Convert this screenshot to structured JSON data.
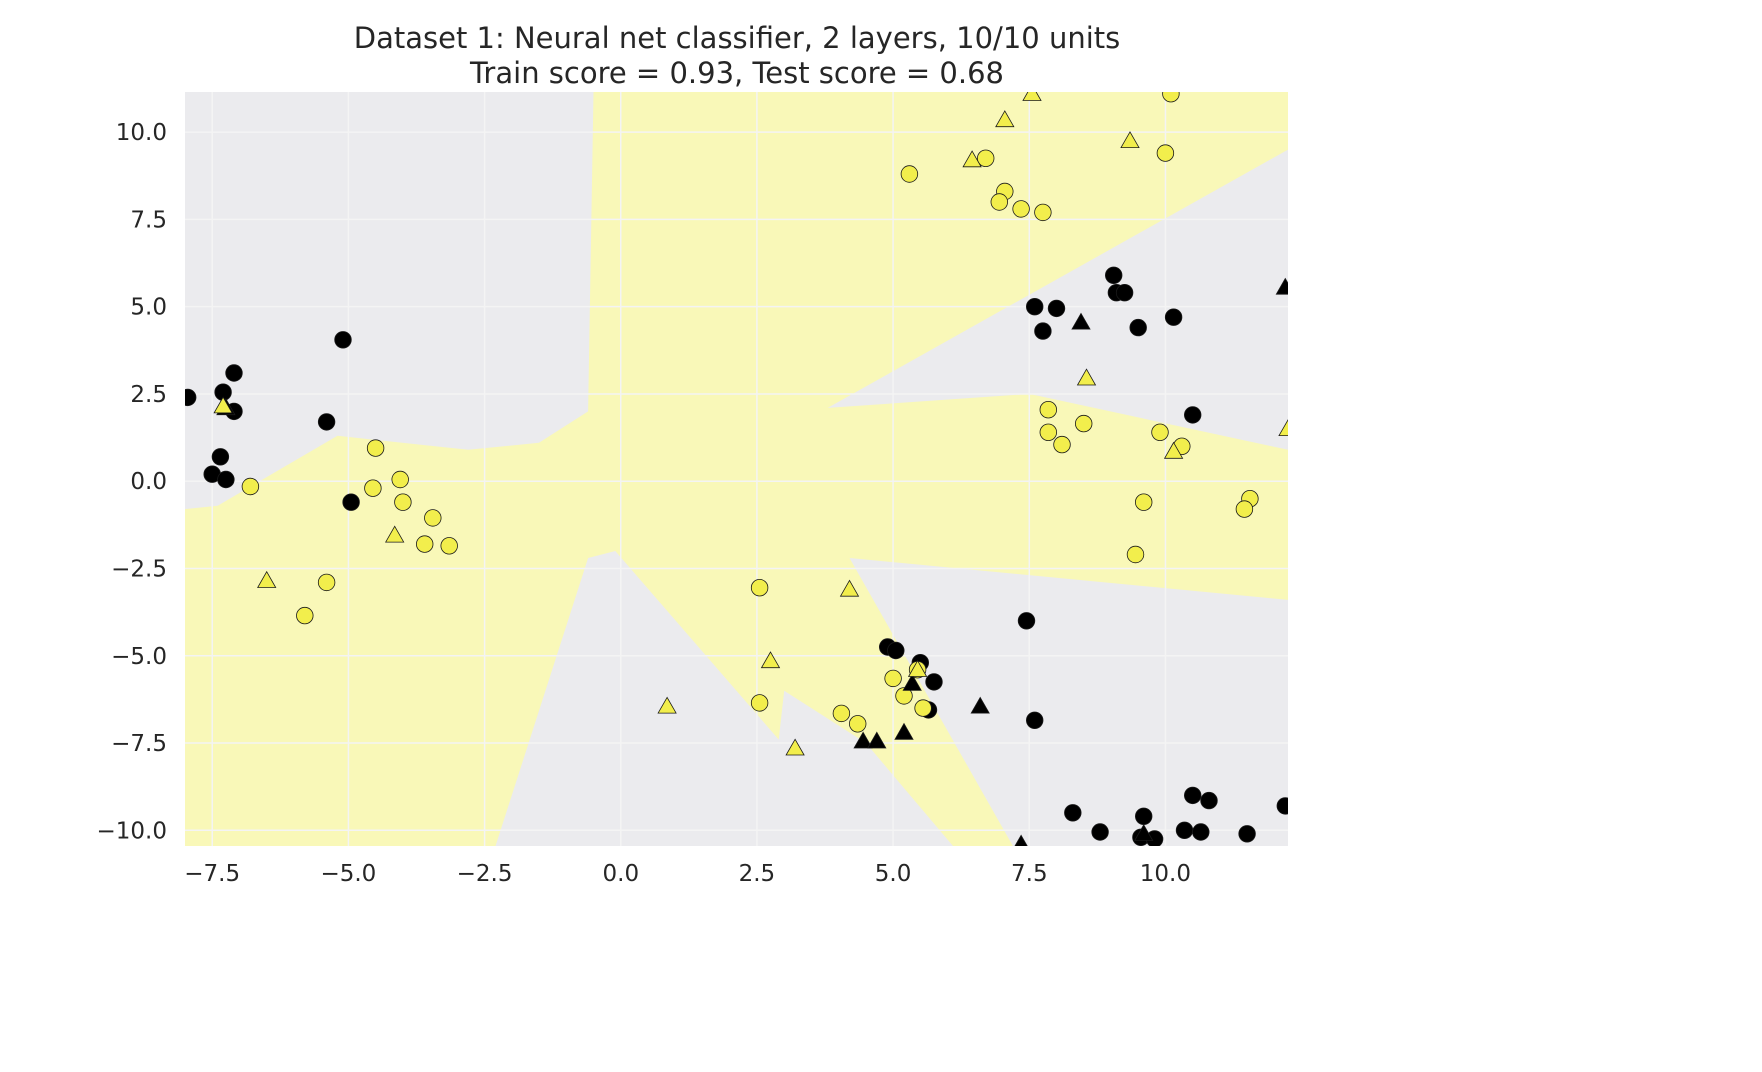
{
  "chart_data": {
    "type": "scatter",
    "title": "Dataset 1: Neural net classifier, 2 layers, 10/10 units",
    "subtitle": "Train score = 0.93, Test score = 0.68",
    "xlabel": "",
    "ylabel": "",
    "xlim": [
      -8.0,
      12.25
    ],
    "ylim": [
      -10.45,
      11.15
    ],
    "x_ticks": [
      -7.5,
      -5.0,
      -2.5,
      0.0,
      2.5,
      5.0,
      7.5,
      10.0
    ],
    "y_ticks": [
      10.0,
      7.5,
      5.0,
      2.5,
      0.0,
      -2.5,
      -5.0,
      -7.5,
      -10.0
    ],
    "x_tick_labels": [
      "−7.5",
      "−5.0",
      "−2.5",
      "0.0",
      "2.5",
      "5.0",
      "7.5",
      "10.0"
    ],
    "y_tick_labels": [
      "10.0",
      "7.5",
      "5.0",
      "2.5",
      "0.0",
      "−2.5",
      "−5.0",
      "−7.5",
      "−10.0"
    ],
    "grid": true,
    "colors": {
      "background_class": "#ebebee",
      "region_class": "#f9f8b8",
      "point_yellow": "#f2ee4c",
      "point_black": "#000000",
      "grid": "#f4f4f4"
    },
    "decision_regions": [
      [
        [
          -0.5,
          11.15
        ],
        [
          -0.6,
          2.0
        ],
        [
          -1.5,
          1.1
        ],
        [
          -2.8,
          0.9
        ],
        [
          -5.2,
          1.3
        ],
        [
          -7.4,
          -0.7
        ],
        [
          -8.0,
          -0.8
        ],
        [
          -8.0,
          -10.45
        ],
        [
          -2.3,
          -10.45
        ],
        [
          -0.6,
          -2.2
        ],
        [
          -0.1,
          -2.0
        ],
        [
          2.9,
          -7.4
        ],
        [
          3.0,
          -6.0
        ],
        [
          4.5,
          -7.5
        ],
        [
          6.1,
          -10.45
        ],
        [
          7.2,
          -10.45
        ],
        [
          4.2,
          -2.2
        ],
        [
          12.25,
          -3.4
        ],
        [
          12.25,
          0.9
        ],
        [
          7.5,
          2.5
        ],
        [
          3.8,
          2.1
        ],
        [
          12.25,
          9.5
        ],
        [
          12.25,
          11.15
        ]
      ],
      [
        [
          -7.0,
          -0.8
        ],
        [
          -1.0,
          -0.2
        ],
        [
          -0.3,
          -0.3
        ],
        [
          -1.5,
          -0.6
        ]
      ]
    ],
    "series": [
      {
        "name": "train",
        "marker": "circle",
        "class_yellow": [
          [
            -6.8,
            -0.15
          ],
          [
            -4.5,
            0.95
          ],
          [
            -4.55,
            -0.2
          ],
          [
            -4.05,
            0.05
          ],
          [
            -4.0,
            -0.6
          ],
          [
            -3.45,
            -1.05
          ],
          [
            -3.6,
            -1.8
          ],
          [
            -3.15,
            -1.85
          ],
          [
            -5.4,
            -2.9
          ],
          [
            -5.8,
            -3.85
          ],
          [
            5.3,
            8.8
          ],
          [
            6.7,
            9.25
          ],
          [
            7.05,
            8.3
          ],
          [
            6.95,
            8.0
          ],
          [
            7.35,
            7.8
          ],
          [
            7.75,
            7.7
          ],
          [
            7.85,
            2.05
          ],
          [
            7.85,
            1.4
          ],
          [
            8.1,
            1.05
          ],
          [
            8.5,
            1.65
          ],
          [
            9.9,
            1.4
          ],
          [
            10.3,
            1.0
          ],
          [
            9.6,
            -0.6
          ],
          [
            9.45,
            -2.1
          ],
          [
            11.55,
            -0.5
          ],
          [
            11.45,
            -0.8
          ],
          [
            10.0,
            9.4
          ],
          [
            10.1,
            11.1
          ],
          [
            2.55,
            -3.05
          ],
          [
            2.55,
            -6.35
          ],
          [
            4.05,
            -6.65
          ],
          [
            4.35,
            -6.95
          ],
          [
            5.0,
            -5.65
          ],
          [
            5.2,
            -6.15
          ],
          [
            5.45,
            -5.4
          ],
          [
            5.55,
            -6.5
          ]
        ],
        "class_black": [
          [
            -7.95,
            2.4
          ],
          [
            -7.3,
            2.55
          ],
          [
            -7.1,
            3.1
          ],
          [
            -7.1,
            2.0
          ],
          [
            -7.35,
            0.7
          ],
          [
            -7.5,
            0.2
          ],
          [
            -7.25,
            0.05
          ],
          [
            -5.1,
            4.05
          ],
          [
            -5.4,
            1.7
          ],
          [
            -4.95,
            -0.6
          ],
          [
            7.6,
            5.0
          ],
          [
            8.0,
            4.95
          ],
          [
            7.75,
            4.3
          ],
          [
            9.05,
            5.9
          ],
          [
            9.1,
            5.4
          ],
          [
            9.25,
            5.4
          ],
          [
            9.5,
            4.4
          ],
          [
            10.15,
            4.7
          ],
          [
            10.5,
            1.9
          ],
          [
            7.45,
            -4.0
          ],
          [
            7.6,
            -6.85
          ],
          [
            4.9,
            -4.75
          ],
          [
            5.05,
            -4.85
          ],
          [
            5.5,
            -5.2
          ],
          [
            5.75,
            -5.75
          ],
          [
            5.65,
            -6.55
          ],
          [
            8.3,
            -9.5
          ],
          [
            8.8,
            -10.05
          ],
          [
            9.6,
            -9.6
          ],
          [
            9.55,
            -10.2
          ],
          [
            9.8,
            -10.25
          ],
          [
            10.35,
            -10.0
          ],
          [
            10.65,
            -10.05
          ],
          [
            10.5,
            -9.0
          ],
          [
            10.8,
            -9.15
          ],
          [
            11.5,
            -10.1
          ],
          [
            12.2,
            -9.3
          ]
        ]
      },
      {
        "name": "test",
        "marker": "triangle",
        "class_yellow": [
          [
            -7.3,
            2.15
          ],
          [
            -6.5,
            -2.85
          ],
          [
            -4.15,
            -1.55
          ],
          [
            0.85,
            -6.45
          ],
          [
            2.75,
            -5.15
          ],
          [
            3.2,
            -7.65
          ],
          [
            4.2,
            -3.1
          ],
          [
            5.45,
            -5.4
          ],
          [
            6.45,
            9.2
          ],
          [
            7.05,
            10.35
          ],
          [
            7.55,
            11.1
          ],
          [
            9.35,
            9.75
          ],
          [
            8.55,
            2.95
          ],
          [
            10.15,
            0.85
          ],
          [
            12.25,
            1.5
          ]
        ],
        "class_black": [
          [
            -7.25,
            2.1
          ],
          [
            5.35,
            -5.8
          ],
          [
            4.45,
            -7.45
          ],
          [
            4.7,
            -7.45
          ],
          [
            5.2,
            -7.2
          ],
          [
            6.6,
            -6.45
          ],
          [
            8.45,
            4.55
          ],
          [
            7.35,
            -10.4
          ],
          [
            9.6,
            -10.1
          ],
          [
            12.2,
            5.55
          ]
        ]
      }
    ]
  }
}
